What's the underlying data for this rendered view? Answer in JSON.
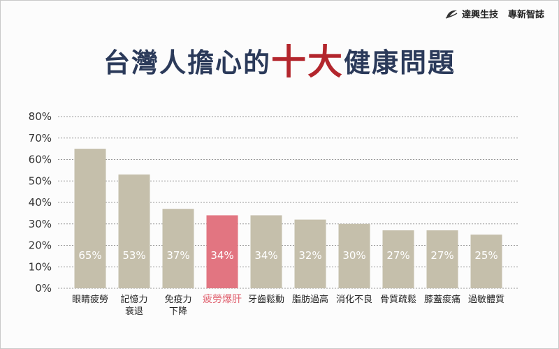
{
  "brand": {
    "company": "達興生技",
    "magazine": "專新智誌",
    "logo_icon": "leaf-swoosh-icon"
  },
  "header": {
    "title_before": "台灣人擔心的",
    "title_highlight": "十大",
    "title_after": "健康問題"
  },
  "colors": {
    "bar": "#c5bfab",
    "bar_highlight": "#e27581",
    "title": "#2b3a5a",
    "title_highlight": "#b3262d",
    "grid": "#9a9a9a"
  },
  "chart_data": {
    "type": "bar",
    "categories": [
      [
        "眼睛疲勞"
      ],
      [
        "記憶力",
        "衰退"
      ],
      [
        "免疫力",
        "下降"
      ],
      [
        "疲勞爆肝"
      ],
      [
        "牙齒鬆動"
      ],
      [
        "脂肪過高"
      ],
      [
        "消化不良"
      ],
      [
        "骨質疏鬆"
      ],
      [
        "膝蓋痠痛"
      ],
      [
        "過敏體質"
      ]
    ],
    "values": [
      65,
      53,
      37,
      34,
      34,
      32,
      30,
      27,
      27,
      25
    ],
    "value_labels": [
      "65%",
      "53%",
      "37%",
      "34%",
      "34%",
      "32%",
      "30%",
      "27%",
      "27%",
      "25%"
    ],
    "highlight_index": 3,
    "y_ticks": [
      "0%",
      "10%",
      "20%",
      "30%",
      "40%",
      "50%",
      "60%",
      "70%",
      "80%"
    ],
    "ylim": [
      0,
      80
    ],
    "grid": "dotted horizontal",
    "legend": "none"
  }
}
